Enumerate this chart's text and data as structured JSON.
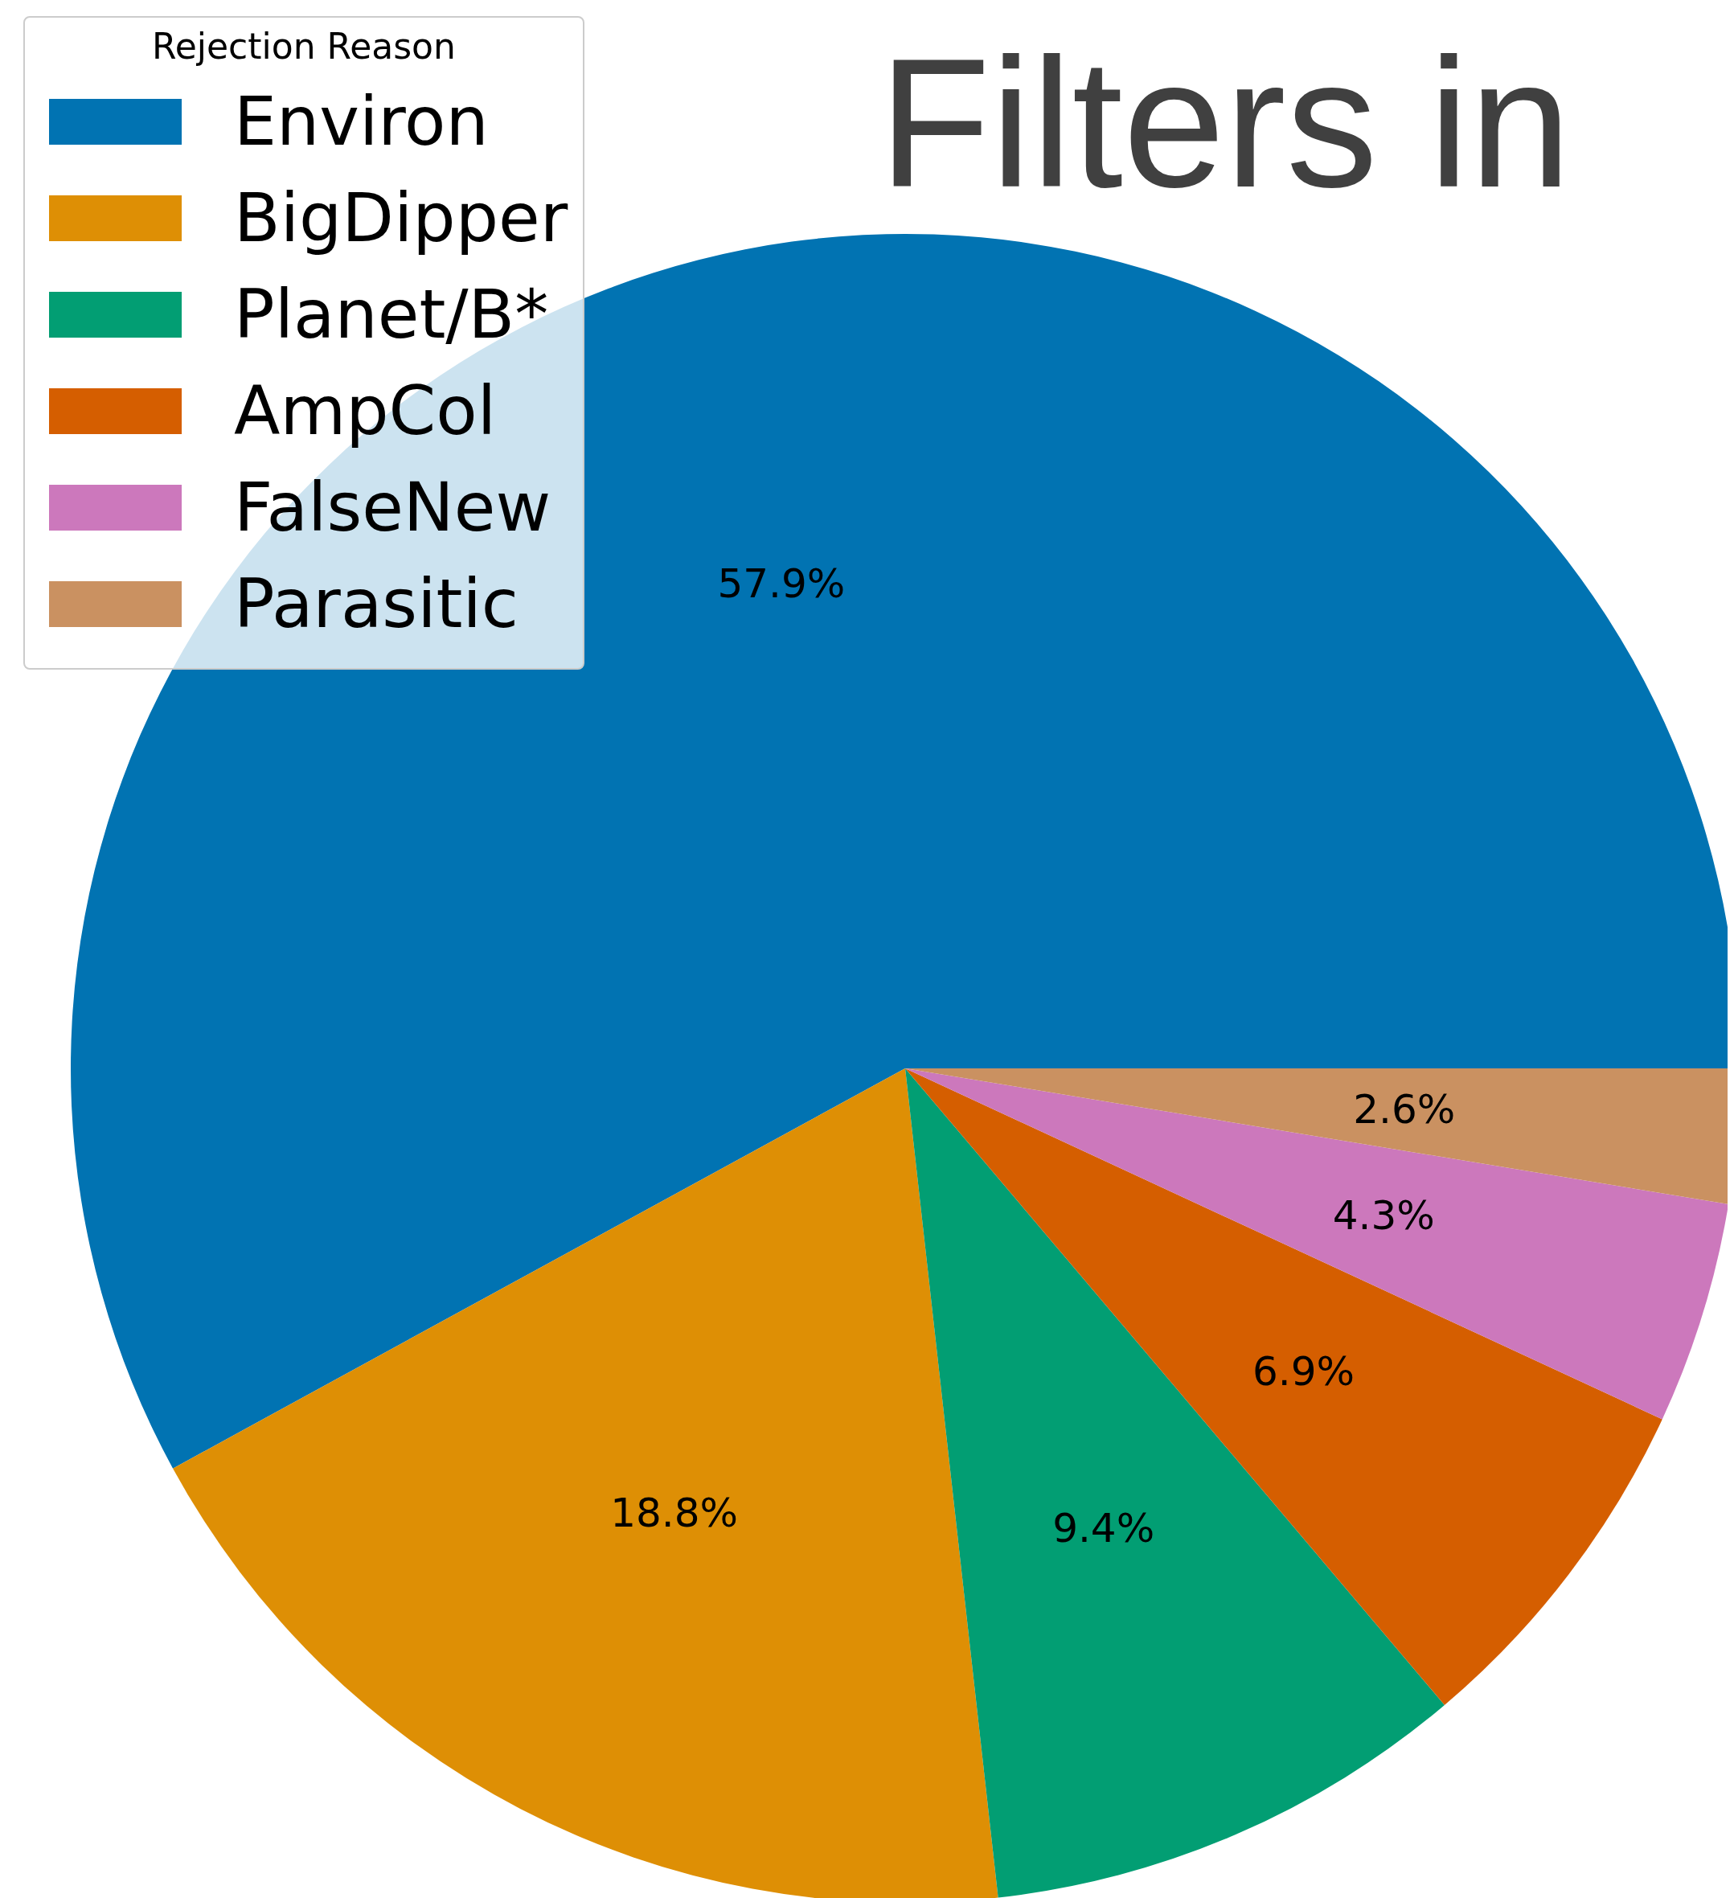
{
  "chart_data": {
    "type": "pie",
    "title": "Filters in",
    "legend_title": "Rejection Reason",
    "legend": "top left",
    "categories": [
      "Environ",
      "BigDipper",
      "Planet/B*",
      "AmpCol",
      "FalseNew",
      "Parasitic"
    ],
    "values": [
      57.9,
      18.8,
      9.4,
      6.9,
      4.3,
      2.6
    ],
    "value_labels": [
      "57.9%",
      "18.8%",
      "9.4%",
      "6.9%",
      "4.3%",
      "2.6%"
    ],
    "colors": [
      "#0173b2",
      "#de8f05",
      "#029e73",
      "#d55e00",
      "#cc78bc",
      "#ca9161"
    ]
  }
}
